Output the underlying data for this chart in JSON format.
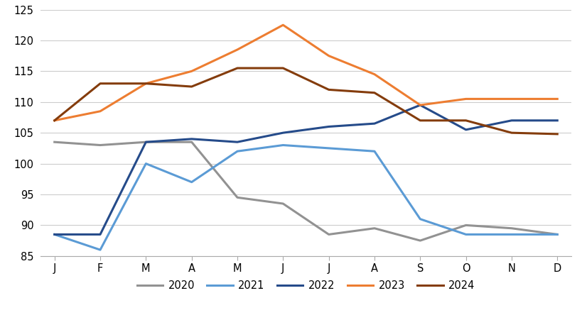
{
  "months": [
    "J",
    "F",
    "M",
    "A",
    "M",
    "J",
    "J",
    "A",
    "S",
    "O",
    "N",
    "D"
  ],
  "series": {
    "2020": [
      103.5,
      103.0,
      103.5,
      103.5,
      94.5,
      93.5,
      88.5,
      89.5,
      87.5,
      90.0,
      89.5,
      88.5
    ],
    "2021": [
      88.5,
      86.0,
      100.0,
      97.0,
      102.0,
      103.0,
      102.5,
      102.0,
      91.0,
      88.5,
      88.5,
      88.5
    ],
    "2022": [
      88.5,
      88.5,
      103.5,
      104.0,
      103.5,
      105.0,
      106.0,
      106.5,
      109.5,
      105.5,
      107.0,
      107.0
    ],
    "2023": [
      107.0,
      108.5,
      113.0,
      115.0,
      118.5,
      122.5,
      117.5,
      114.5,
      109.5,
      110.5,
      110.5,
      110.5
    ],
    "2024": [
      107.0,
      113.0,
      113.0,
      112.5,
      115.5,
      115.5,
      112.0,
      111.5,
      107.0,
      107.0,
      105.0,
      104.8
    ]
  },
  "colors": {
    "2020": "#929292",
    "2021": "#5b9bd5",
    "2022": "#254b8a",
    "2023": "#ed7d31",
    "2024": "#843c0c"
  },
  "ylim": [
    85,
    125
  ],
  "yticks": [
    85,
    90,
    95,
    100,
    105,
    110,
    115,
    120,
    125
  ],
  "legend_order": [
    "2020",
    "2021",
    "2022",
    "2023",
    "2024"
  ],
  "background_color": "#ffffff",
  "grid_color": "#cccccc"
}
